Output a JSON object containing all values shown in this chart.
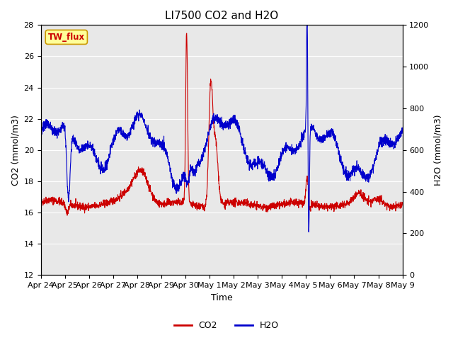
{
  "title": "LI7500 CO2 and H2O",
  "xlabel": "Time",
  "ylabel_left": "CO2 (mmol/m3)",
  "ylabel_right": "H2O (mmol/m3)",
  "ylim_left": [
    12,
    28
  ],
  "ylim_right": [
    0,
    1200
  ],
  "yticks_left": [
    12,
    14,
    16,
    18,
    20,
    22,
    24,
    26,
    28
  ],
  "yticks_right": [
    0,
    200,
    400,
    600,
    800,
    1000,
    1200
  ],
  "x_tick_labels": [
    "Apr 24",
    "Apr 25",
    "Apr 26",
    "Apr 27",
    "Apr 28",
    "Apr 29",
    "Apr 30",
    "May 1",
    "May 2",
    "May 3",
    "May 4",
    "May 5",
    "May 6",
    "May 7",
    "May 8",
    "May 9"
  ],
  "co2_color": "#cc0000",
  "h2o_color": "#0000cc",
  "background_color": "#e8e8e8",
  "title_fontsize": 11,
  "axis_label_fontsize": 9,
  "tick_label_fontsize": 8,
  "legend_fontsize": 9,
  "watermark_text": "TW_flux",
  "watermark_bg": "#ffff99",
  "watermark_border": "#cc9900",
  "watermark_text_color": "#cc0000"
}
